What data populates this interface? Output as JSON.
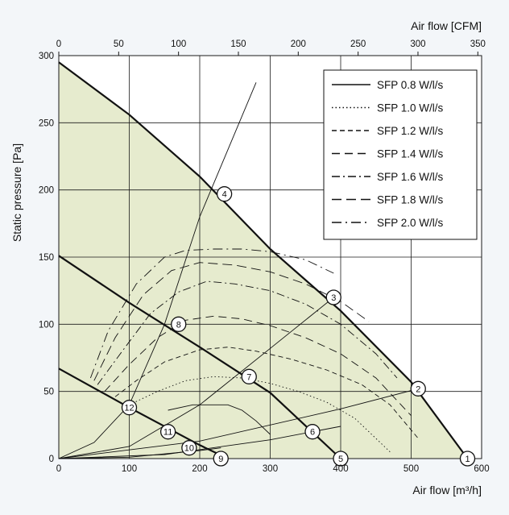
{
  "chart_data": {
    "type": "line",
    "title": "",
    "xlabel_bottom": "Air flow [m³/h]",
    "xlabel_top": "Air flow [CFM]",
    "ylabel": "Static pressure [Pa]",
    "xlim": [
      0,
      600
    ],
    "ylim": [
      0,
      300
    ],
    "x_ticks_bottom": [
      "0",
      "100",
      "200",
      "300",
      "400",
      "500",
      "600"
    ],
    "x_ticks_top": [
      "0",
      "50",
      "100",
      "150",
      "200",
      "250",
      "300",
      "350"
    ],
    "y_ticks": [
      "0",
      "50",
      "100",
      "150",
      "200",
      "250",
      "300"
    ],
    "grid": true,
    "legend_position": "top-right",
    "fan_curves": [
      {
        "x": [
          0,
          100,
          200,
          300,
          400,
          500,
          580
        ],
        "y": [
          295,
          256,
          210,
          156,
          110,
          57,
          0
        ]
      },
      {
        "x": [
          0,
          100,
          200,
          300,
          400
        ],
        "y": [
          151,
          116,
          83,
          49,
          0
        ]
      },
      {
        "x": [
          0,
          100,
          200,
          240
        ],
        "y": [
          67,
          38,
          10,
          0
        ]
      }
    ],
    "system_curves": [
      {
        "x": [
          0,
          100,
          200,
          230
        ],
        "y": [
          0,
          1,
          6,
          8
        ]
      },
      {
        "x": [
          0,
          150,
          300,
          400
        ],
        "y": [
          0,
          3,
          14,
          24
        ]
      },
      {
        "x": [
          0,
          200,
          400,
          510
        ],
        "y": [
          0,
          13,
          37,
          52
        ]
      },
      {
        "x": [
          0,
          100,
          200,
          300,
          390
        ],
        "y": [
          0,
          9,
          40,
          82,
          120
        ]
      },
      {
        "x": [
          0,
          50,
          100,
          150,
          200,
          280
        ],
        "y": [
          0,
          12,
          40,
          100,
          180,
          280
        ]
      }
    ],
    "series": [
      {
        "name": "SFP 0.8 W/l/s",
        "x": [
          155,
          190,
          220,
          240,
          260,
          280,
          300
        ],
        "y": [
          36,
          40,
          40,
          40,
          36,
          28,
          18
        ]
      },
      {
        "name": "SFP 1.0 W/l/s",
        "x": [
          100,
          140,
          180,
          220,
          260,
          300,
          340,
          380,
          420,
          470
        ],
        "y": [
          40,
          50,
          58,
          61,
          60,
          56,
          50,
          42,
          30,
          5
        ]
      },
      {
        "name": "SFP 1.2 W/l/s",
        "x": [
          80,
          110,
          150,
          200,
          240,
          280,
          330,
          380,
          430,
          470,
          510
        ],
        "y": [
          46,
          58,
          72,
          81,
          83,
          80,
          74,
          66,
          55,
          40,
          15
        ]
      },
      {
        "name": "SFP 1.4 W/l/s",
        "x": [
          65,
          100,
          140,
          180,
          220,
          260,
          300,
          350,
          400,
          450,
          500
        ],
        "y": [
          50,
          70,
          90,
          103,
          106,
          104,
          99,
          90,
          78,
          60,
          32
        ]
      },
      {
        "name": "SFP 1.6 W/l/s",
        "x": [
          55,
          90,
          130,
          170,
          210,
          250,
          300,
          350,
          400,
          450,
          480
        ],
        "y": [
          55,
          80,
          108,
          124,
          132,
          130,
          125,
          115,
          100,
          78,
          60
        ]
      },
      {
        "name": "SFP 1.8 W/l/s",
        "x": [
          50,
          80,
          120,
          160,
          200,
          250,
          300,
          350,
          400,
          440
        ],
        "y": [
          58,
          90,
          122,
          140,
          146,
          144,
          139,
          130,
          117,
          102
        ]
      },
      {
        "name": "SFP 2.0 W/l/s",
        "x": [
          45,
          70,
          110,
          150,
          180,
          220,
          260,
          300,
          350,
          390
        ],
        "y": [
          60,
          95,
          130,
          150,
          155,
          156,
          156,
          154,
          148,
          138
        ]
      }
    ],
    "points": [
      {
        "label": "1",
        "x": 580,
        "y": 0
      },
      {
        "label": "2",
        "x": 510,
        "y": 52
      },
      {
        "label": "3",
        "x": 390,
        "y": 120
      },
      {
        "label": "4",
        "x": 235,
        "y": 197
      },
      {
        "label": "5",
        "x": 400,
        "y": 0
      },
      {
        "label": "6",
        "x": 360,
        "y": 20
      },
      {
        "label": "7",
        "x": 270,
        "y": 61
      },
      {
        "label": "8",
        "x": 170,
        "y": 100
      },
      {
        "label": "9",
        "x": 230,
        "y": 0
      },
      {
        "label": "10",
        "x": 185,
        "y": 8
      },
      {
        "label": "11",
        "x": 155,
        "y": 20
      },
      {
        "label": "12",
        "x": 100,
        "y": 38
      }
    ]
  }
}
